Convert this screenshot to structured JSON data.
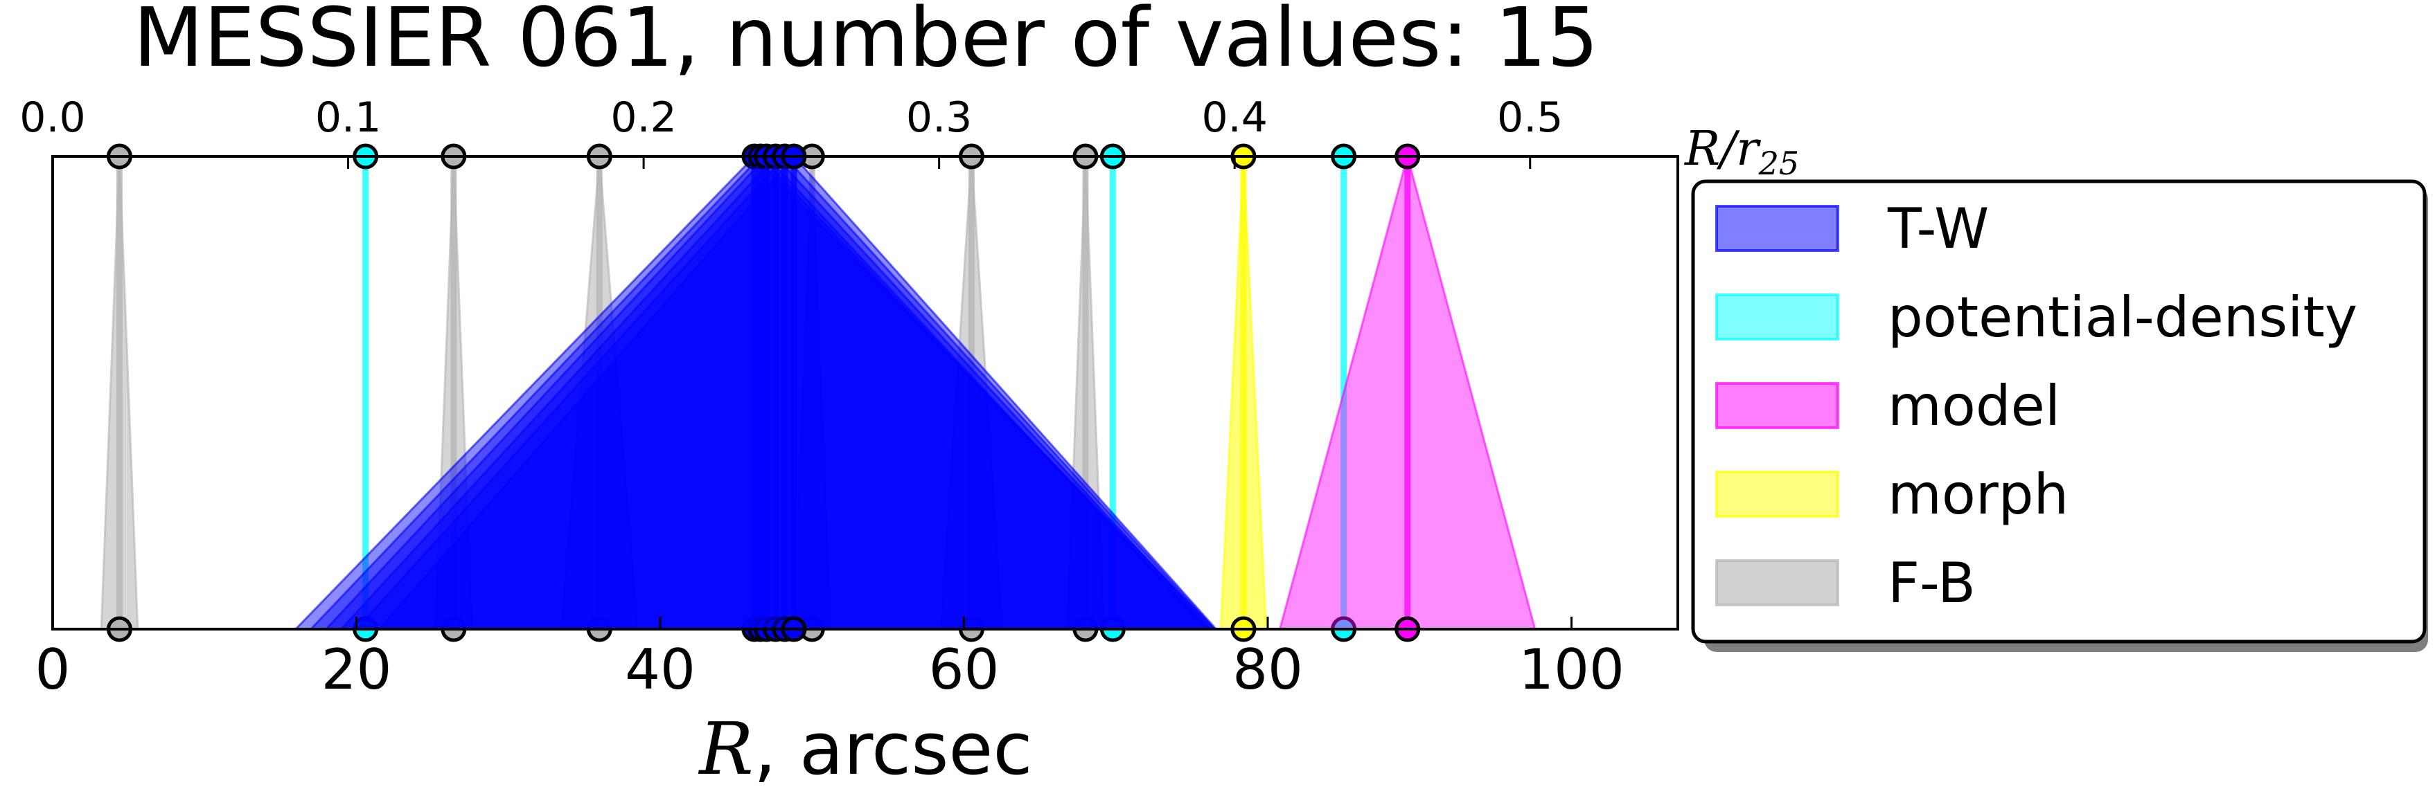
{
  "chart_data": {
    "type": "scatter",
    "title": "MESSIER 061, number of values: 15",
    "xlabel_math": "R",
    "xlabel_rest": ", arcsec",
    "top_xlabel_main": "R/r",
    "top_xlabel_sub": "25",
    "xlim": [
      0,
      107
    ],
    "xticks": [
      "0",
      "20",
      "40",
      "60",
      "80",
      "100"
    ],
    "xtick_values": [
      0,
      20,
      40,
      60,
      80,
      100
    ],
    "top_xlim": [
      0.0,
      0.55
    ],
    "top_xticks": [
      "0.0",
      "0.1",
      "0.2",
      "0.3",
      "0.4",
      "0.5"
    ],
    "top_xtick_values": [
      0.0,
      0.1,
      0.2,
      0.3,
      0.4,
      0.5
    ],
    "grid": false,
    "legend_position": "right",
    "legend": [
      {
        "label": "T-W",
        "color": "#0000ff"
      },
      {
        "label": "potential-density",
        "color": "#00ffff"
      },
      {
        "label": "model",
        "color": "#ff00ff"
      },
      {
        "label": "morph",
        "color": "#ffff00"
      },
      {
        "label": "F-B",
        "color": "#b3b3b3"
      }
    ],
    "series": [
      {
        "name": "T-W",
        "color": "#0000ff",
        "values": [
          {
            "r": 46.2,
            "lo": 16.0,
            "hi": 76.5
          },
          {
            "r": 46.6,
            "lo": 17.0,
            "hi": 76.2
          },
          {
            "r": 47.0,
            "lo": 18.0,
            "hi": 76.0
          },
          {
            "r": 47.6,
            "lo": 19.0,
            "hi": 76.3
          },
          {
            "r": 48.2,
            "lo": 20.0,
            "hi": 76.5
          },
          {
            "r": 48.8,
            "lo": 21.5,
            "hi": 76.6
          }
        ]
      },
      {
        "name": "potential-density",
        "color": "#00ffff",
        "values": [
          {
            "r": 20.6,
            "lo": 20.6,
            "hi": 20.6
          },
          {
            "r": 69.8,
            "lo": 69.8,
            "hi": 69.8
          },
          {
            "r": 85.0,
            "lo": 85.0,
            "hi": 85.0
          }
        ]
      },
      {
        "name": "model",
        "color": "#ff00ff",
        "values": [
          {
            "r": 89.2,
            "lo": 80.8,
            "hi": 97.6
          }
        ]
      },
      {
        "name": "morph",
        "color": "#ffff00",
        "values": [
          {
            "r": 78.4,
            "lo": 76.9,
            "hi": 79.9
          }
        ]
      },
      {
        "name": "F-B",
        "color": "#b3b3b3",
        "values": [
          {
            "r": 4.4,
            "lo": 3.2,
            "hi": 5.6
          },
          {
            "r": 26.4,
            "lo": 25.2,
            "hi": 27.6
          },
          {
            "r": 36.0,
            "lo": 33.5,
            "hi": 38.5
          },
          {
            "r": 50.0,
            "lo": 48.8,
            "hi": 51.2
          },
          {
            "r": 60.5,
            "lo": 58.5,
            "hi": 62.5
          },
          {
            "r": 68.0,
            "lo": 66.8,
            "hi": 69.2
          }
        ]
      }
    ]
  }
}
